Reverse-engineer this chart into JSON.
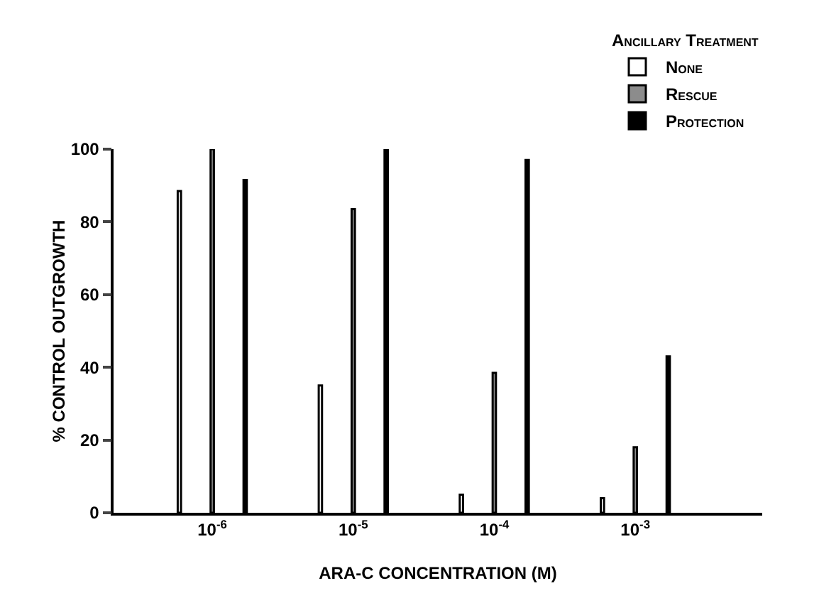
{
  "chart_data": {
    "type": "bar",
    "xlabel": "ARA-C CONCENTRATION (M)",
    "ylabel": "% CONTROL OUTGROWTH",
    "legend_title": "Ancillary Treatment",
    "categories": [
      "10$^{-6}$",
      "10$^{-5}$",
      "10$^{-4}$",
      "10$^{-3}$"
    ],
    "series": [
      {
        "name": "None",
        "color": "#ffffff",
        "values": [
          88.5,
          35,
          5,
          4
        ]
      },
      {
        "name": "Rescue",
        "color": "#8c8c8c",
        "values": [
          100,
          83.5,
          38.5,
          18
        ]
      },
      {
        "name": "Protection",
        "color": "#000000",
        "values": [
          91.5,
          100,
          97,
          43
        ]
      }
    ],
    "ylim": [
      0,
      100
    ],
    "yticks": [
      0,
      20,
      40,
      60,
      80,
      100
    ],
    "grid": false,
    "legend": "top right"
  }
}
